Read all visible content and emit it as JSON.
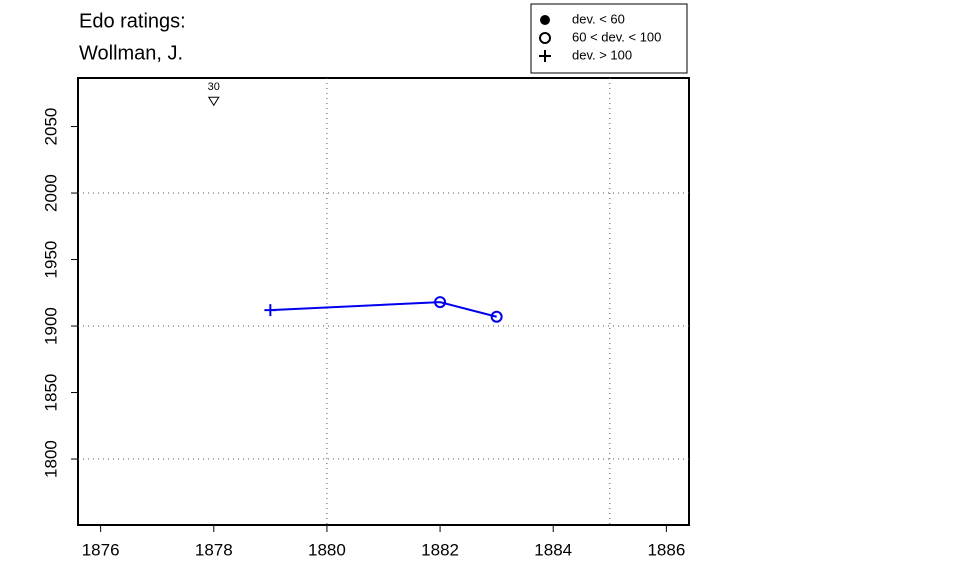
{
  "chart_data": {
    "type": "line",
    "title": [
      "Edo ratings:",
      "Wollman, J."
    ],
    "x": [
      1879,
      1882,
      1883
    ],
    "series": [
      {
        "color": "#0000ee",
        "values": [
          1912,
          1918,
          1907
        ],
        "markers": [
          "plus",
          "circle",
          "circle"
        ]
      }
    ],
    "xlim": [
      1875.6,
      1886.4
    ],
    "ylim": [
      1750.4,
      2086.5
    ],
    "xticks": [
      1876,
      1878,
      1880,
      1882,
      1884,
      1886
    ],
    "yticks": [
      1800,
      1850,
      1900,
      1950,
      2000,
      2050
    ],
    "xgrid": [
      1880,
      1885
    ],
    "ygrid": [
      1800,
      1900,
      2000
    ],
    "annotations": [
      {
        "x": 1878,
        "y": 2069,
        "label": "30",
        "marker": "triangle-down"
      }
    ],
    "legend": [
      {
        "label": "dev. < 60",
        "marker": "dot"
      },
      {
        "label": "60 < dev. < 100",
        "marker": "circle"
      },
      {
        "label": "dev. > 100",
        "marker": "plus"
      }
    ]
  }
}
